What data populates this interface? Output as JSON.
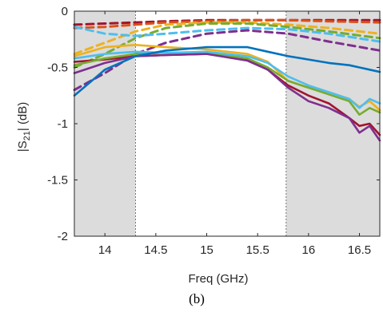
{
  "caption": "(b)",
  "chart_data": {
    "type": "line",
    "title": "",
    "xlabel": "Freq (GHz)",
    "ylabel": "|S21| (dB)",
    "ylabel_main": "|S",
    "ylabel_sub": "21",
    "ylabel_rest": "| (dB)",
    "xlim": [
      13.7,
      16.7
    ],
    "ylim": [
      -2,
      0
    ],
    "xticks": [
      14,
      14.5,
      15,
      15.5,
      16,
      16.5
    ],
    "xtick_labels": [
      "14",
      "14.5",
      "15",
      "15.5",
      "16",
      "16.5"
    ],
    "yticks": [
      0,
      -0.5,
      -1,
      -1.5,
      -2
    ],
    "ytick_labels": [
      "0",
      "-0.5",
      "-1",
      "-1.5",
      "-2"
    ],
    "grid": false,
    "legend": "none",
    "shaded_regions": [
      {
        "x0": 13.7,
        "x1": 14.3,
        "color": "#dcdcdc"
      },
      {
        "x0": 15.78,
        "x1": 16.7,
        "color": "#dcdcdc"
      }
    ],
    "series": [
      {
        "style": "dashed",
        "color": "#a2142f",
        "x": [
          13.7,
          14.0,
          14.3,
          14.6,
          15.0,
          15.4,
          15.8,
          16.2,
          16.7
        ],
        "values": [
          -0.12,
          -0.11,
          -0.1,
          -0.09,
          -0.08,
          -0.08,
          -0.08,
          -0.08,
          -0.08
        ]
      },
      {
        "style": "dashed",
        "color": "#d95319",
        "x": [
          13.7,
          14.0,
          14.3,
          14.6,
          15.0,
          15.4,
          15.8,
          16.2,
          16.7
        ],
        "values": [
          -0.15,
          -0.14,
          -0.12,
          -0.1,
          -0.09,
          -0.08,
          -0.08,
          -0.09,
          -0.1
        ]
      },
      {
        "style": "dashed",
        "color": "#edb120",
        "x": [
          13.7,
          14.0,
          14.3,
          14.6,
          15.0,
          15.4,
          15.8,
          16.2,
          16.7
        ],
        "values": [
          -0.38,
          -0.28,
          -0.18,
          -0.12,
          -0.1,
          -0.1,
          -0.12,
          -0.15,
          -0.2
        ]
      },
      {
        "style": "dashed",
        "color": "#77ac30",
        "x": [
          13.7,
          14.0,
          14.3,
          14.6,
          15.0,
          15.4,
          15.8,
          16.2,
          16.7
        ],
        "values": [
          -0.5,
          -0.38,
          -0.24,
          -0.15,
          -0.11,
          -0.11,
          -0.14,
          -0.18,
          -0.24
        ]
      },
      {
        "style": "dashed",
        "color": "#4dbeee",
        "x": [
          13.7,
          14.0,
          14.3,
          14.6,
          15.0,
          15.4,
          15.8,
          16.2,
          16.7
        ],
        "values": [
          -0.14,
          -0.2,
          -0.22,
          -0.2,
          -0.17,
          -0.15,
          -0.16,
          -0.2,
          -0.27
        ]
      },
      {
        "style": "dashed",
        "color": "#7e2f8e",
        "x": [
          13.7,
          14.0,
          14.3,
          14.6,
          15.0,
          15.4,
          15.8,
          16.2,
          16.7
        ],
        "values": [
          -0.7,
          -0.55,
          -0.38,
          -0.28,
          -0.2,
          -0.17,
          -0.2,
          -0.27,
          -0.35
        ]
      },
      {
        "style": "solid",
        "color": "#edb120",
        "x": [
          13.7,
          14.0,
          14.3,
          14.6,
          15.0,
          15.4,
          15.6,
          15.8,
          16.0,
          16.2,
          16.4,
          16.5,
          16.6,
          16.7
        ],
        "values": [
          -0.4,
          -0.32,
          -0.3,
          -0.32,
          -0.34,
          -0.38,
          -0.45,
          -0.62,
          -0.68,
          -0.72,
          -0.78,
          -0.85,
          -0.8,
          -0.88
        ]
      },
      {
        "style": "solid",
        "color": "#a2142f",
        "x": [
          13.7,
          14.0,
          14.3,
          14.6,
          15.0,
          15.4,
          15.6,
          15.8,
          16.0,
          16.2,
          16.4,
          16.5,
          16.6,
          16.7
        ],
        "values": [
          -0.45,
          -0.43,
          -0.4,
          -0.39,
          -0.38,
          -0.43,
          -0.52,
          -0.66,
          -0.75,
          -0.82,
          -0.95,
          -1.02,
          -1.0,
          -1.1
        ]
      },
      {
        "style": "solid",
        "color": "#77ac30",
        "x": [
          13.7,
          14.0,
          14.3,
          14.6,
          15.0,
          15.4,
          15.6,
          15.8,
          16.0,
          16.2,
          16.4,
          16.5,
          16.6,
          16.7
        ],
        "values": [
          -0.48,
          -0.42,
          -0.38,
          -0.37,
          -0.37,
          -0.42,
          -0.5,
          -0.62,
          -0.68,
          -0.74,
          -0.8,
          -0.92,
          -0.86,
          -0.9
        ]
      },
      {
        "style": "solid",
        "color": "#7e2f8e",
        "x": [
          13.7,
          14.0,
          14.3,
          14.6,
          15.0,
          15.4,
          15.6,
          15.8,
          16.0,
          16.2,
          16.4,
          16.5,
          16.6,
          16.7
        ],
        "values": [
          -0.55,
          -0.46,
          -0.4,
          -0.39,
          -0.38,
          -0.44,
          -0.52,
          -0.68,
          -0.8,
          -0.86,
          -0.95,
          -1.08,
          -1.02,
          -1.15
        ]
      },
      {
        "style": "solid",
        "color": "#4dbeee",
        "x": [
          13.7,
          14.0,
          14.3,
          14.6,
          15.0,
          15.4,
          15.6,
          15.8,
          16.0,
          16.2,
          16.4,
          16.5,
          16.6,
          16.7
        ],
        "values": [
          -0.42,
          -0.38,
          -0.36,
          -0.37,
          -0.36,
          -0.4,
          -0.46,
          -0.58,
          -0.66,
          -0.72,
          -0.78,
          -0.86,
          -0.78,
          -0.82
        ]
      },
      {
        "style": "solid",
        "color": "#0072bd",
        "x": [
          13.7,
          14.0,
          14.3,
          14.6,
          15.0,
          15.4,
          15.6,
          15.8,
          16.0,
          16.2,
          16.4,
          16.5,
          16.6,
          16.7
        ],
        "values": [
          -0.75,
          -0.52,
          -0.4,
          -0.35,
          -0.32,
          -0.32,
          -0.36,
          -0.4,
          -0.43,
          -0.46,
          -0.48,
          -0.5,
          -0.52,
          -0.54
        ]
      }
    ]
  }
}
